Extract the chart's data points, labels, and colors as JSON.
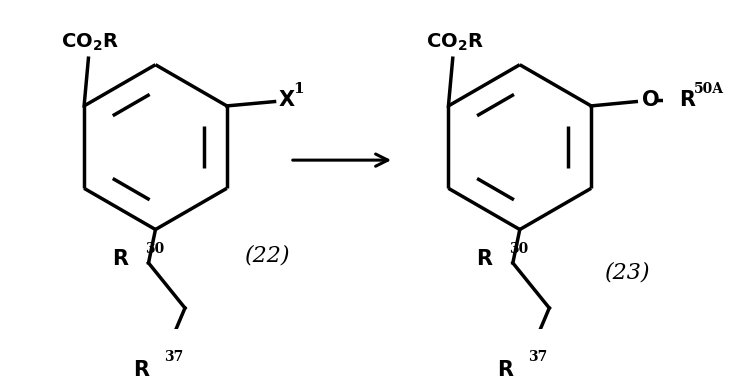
{
  "bg_color": "#ffffff",
  "line_color": "#000000",
  "line_width": 2.5,
  "fig_width": 7.4,
  "fig_height": 3.78,
  "dpi": 100
}
